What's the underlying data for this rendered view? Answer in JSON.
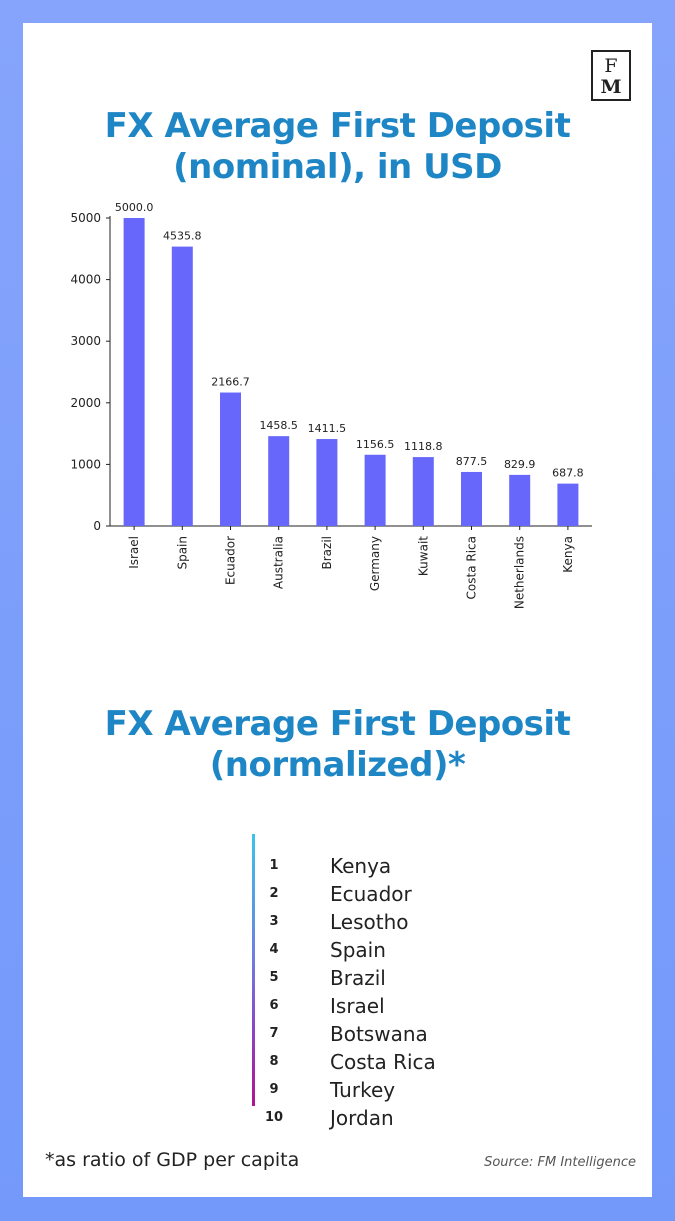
{
  "logo": {
    "line1": "F",
    "line2": "M"
  },
  "chart_data": [
    {
      "type": "bar",
      "title_lines": [
        "FX Average First Deposit",
        "(nominal), in USD"
      ],
      "categories": [
        "Israel",
        "Spain",
        "Ecuador",
        "Australia",
        "Brazil",
        "Germany",
        "Kuwait",
        "Costa Rica",
        "Netherlands",
        "Kenya"
      ],
      "values": [
        5000.0,
        4535.8,
        2166.7,
        1458.5,
        1411.5,
        1156.5,
        1118.8,
        877.5,
        829.9,
        687.8
      ],
      "value_labels": [
        "5000.0",
        "4535.8",
        "2166.7",
        "1458.5",
        "1411.5",
        "1156.5",
        "1118.8",
        "877.5",
        "829.9",
        "687.8"
      ],
      "yticks": [
        "0",
        "1000",
        "2000",
        "3000",
        "4000",
        "5000"
      ],
      "ylim": [
        0,
        5000
      ],
      "xlabel": "",
      "ylabel": "",
      "grid": false,
      "bar_color": "#6767fb"
    },
    {
      "type": "table",
      "title_lines": [
        "FX Average First Deposit",
        "(normalized)*"
      ],
      "ranks": [
        {
          "rank": "1",
          "country": "Kenya"
        },
        {
          "rank": "2",
          "country": "Ecuador"
        },
        {
          "rank": "3",
          "country": "Lesotho"
        },
        {
          "rank": "4",
          "country": "Spain"
        },
        {
          "rank": "5",
          "country": "Brazil"
        },
        {
          "rank": "6",
          "country": "Israel"
        },
        {
          "rank": "7",
          "country": "Botswana"
        },
        {
          "rank": "8",
          "country": "Costa Rica"
        },
        {
          "rank": "9",
          "country": "Turkey"
        },
        {
          "rank": "10",
          "country": "Jordan"
        }
      ]
    }
  ],
  "footnote": "*as ratio of GDP per capita",
  "source": "Source: FM Intelligence",
  "colors": {
    "title": "#1f86c6",
    "frame": "#7d9dfb",
    "bar": "#6767fb"
  }
}
